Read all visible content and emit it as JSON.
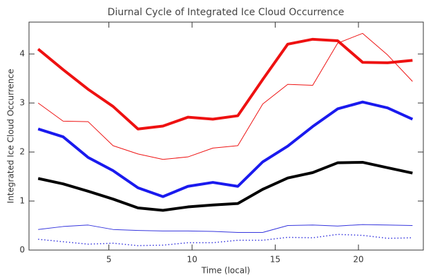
{
  "chart_data": {
    "type": "line",
    "title": "Diurnal Cycle of Integrated Ice Cloud Occurrence",
    "xlabel": "Time (local)",
    "ylabel": "Integrated Ice Cloud Occurrence",
    "x": [
      0.75,
      2.25,
      3.75,
      5.25,
      6.75,
      8.25,
      9.75,
      11.25,
      12.75,
      14.25,
      15.75,
      17.25,
      18.75,
      20.25,
      21.75,
      23.25
    ],
    "series": [
      {
        "color": "#ee1111",
        "width": 4,
        "dash": "solid",
        "values": [
          4.1,
          3.68,
          3.28,
          2.93,
          2.47,
          2.53,
          2.71,
          2.67,
          2.74,
          3.48,
          4.2,
          4.3,
          4.27,
          3.83,
          3.82,
          3.87
        ]
      },
      {
        "color": "#ee1111",
        "width": 1,
        "dash": "solid",
        "values": [
          3.0,
          2.63,
          2.62,
          2.13,
          1.96,
          1.85,
          1.9,
          2.08,
          2.13,
          2.98,
          3.38,
          3.36,
          4.22,
          4.42,
          3.98,
          3.44
        ]
      },
      {
        "color": "#1a1aee",
        "width": 4,
        "dash": "solid",
        "values": [
          2.47,
          2.31,
          1.89,
          1.62,
          1.27,
          1.09,
          1.3,
          1.38,
          1.3,
          1.8,
          2.12,
          2.52,
          2.88,
          3.02,
          2.9,
          2.67
        ]
      },
      {
        "color": "#000000",
        "width": 4,
        "dash": "solid",
        "values": [
          1.46,
          1.35,
          1.2,
          1.04,
          0.86,
          0.81,
          0.88,
          0.92,
          0.95,
          1.24,
          1.47,
          1.58,
          1.78,
          1.79,
          1.68,
          1.57
        ]
      },
      {
        "color": "#3333dd",
        "width": 1,
        "dash": "solid",
        "values": [
          0.42,
          0.48,
          0.51,
          0.42,
          0.4,
          0.39,
          0.39,
          0.38,
          0.36,
          0.36,
          0.5,
          0.51,
          0.49,
          0.52,
          0.51,
          0.5
        ]
      },
      {
        "color": "#3333dd",
        "width": 1.5,
        "dash": "dotted",
        "values": [
          0.22,
          0.17,
          0.12,
          0.14,
          0.09,
          0.1,
          0.15,
          0.15,
          0.2,
          0.2,
          0.26,
          0.25,
          0.32,
          0.3,
          0.24,
          0.25
        ]
      }
    ],
    "xlim": [
      0.2,
      23.9
    ],
    "xticks": [
      5,
      10,
      15,
      20
    ],
    "ylim": [
      0,
      4.65
    ],
    "yticks": [
      0,
      1,
      2,
      3,
      4
    ],
    "grid": false
  }
}
